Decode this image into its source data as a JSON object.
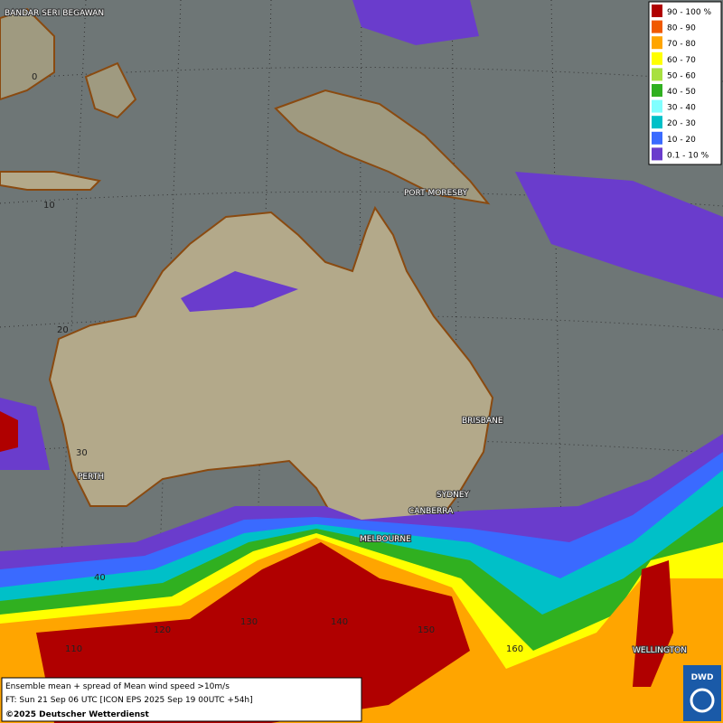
{
  "legend": {
    "items": [
      {
        "label": "90 - 100 %",
        "color": "#b00000"
      },
      {
        "label": "80 - 90",
        "color": "#f05a00"
      },
      {
        "label": "70 - 80",
        "color": "#ffa500"
      },
      {
        "label": "60 - 70",
        "color": "#ffff00"
      },
      {
        "label": "50 - 60",
        "color": "#a8e040"
      },
      {
        "label": "40 - 50",
        "color": "#30b020"
      },
      {
        "label": "30 - 40",
        "color": "#80ffff"
      },
      {
        "label": "20 - 30",
        "color": "#00c0c8"
      },
      {
        "label": "10 - 20",
        "color": "#3a6aff"
      },
      {
        "label": "0.1 - 10 %",
        "color": "#6a3ccc"
      }
    ]
  },
  "cities": [
    "BANDAR SERI BEGAWAN",
    "PORT MORESBY",
    "BRISBANE",
    "SYDNEY",
    "CANBERRA",
    "MELBOURNE",
    "PERTH",
    "WELLINGTON"
  ],
  "grid_labels": [
    "0",
    "10",
    "20",
    "30",
    "40",
    "110",
    "120",
    "130",
    "140",
    "150",
    "160"
  ],
  "footer": {
    "line1": "Ensemble mean + spread of Mean wind speed >10m/s",
    "line2": "FT: Sun 21 Sep 06 UTC [ICON EPS 2025 Sep 19 00UTC +54h]",
    "line3": "©2025 Deutscher Wetterdienst"
  },
  "logo": "DWD"
}
